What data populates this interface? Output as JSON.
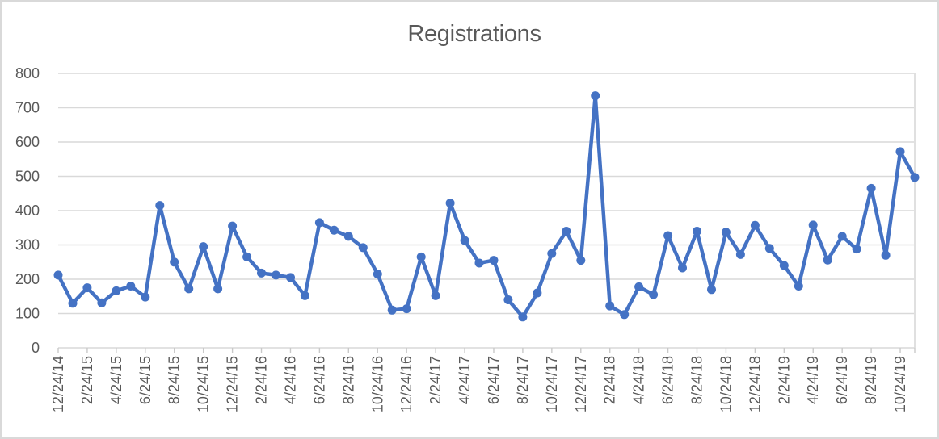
{
  "chart_data": {
    "type": "line",
    "title": "Registrations",
    "series_name": "Registrations",
    "series_color": "#4472C4",
    "title_color": "#595959",
    "axis_label_color": "#595959",
    "gridline_color": "#D9D9D9",
    "legend": "none",
    "grid": true,
    "marker": "circle",
    "x_label_rotation_deg": 90,
    "ylim": [
      0,
      800
    ],
    "y_ticks": [
      0,
      100,
      200,
      300,
      400,
      500,
      600,
      700,
      800
    ],
    "x": [
      "12/24/14",
      "1/24/15",
      "2/24/15",
      "3/24/15",
      "4/24/15",
      "5/24/15",
      "6/24/15",
      "7/24/15",
      "8/24/15",
      "9/24/15",
      "10/24/15",
      "11/24/15",
      "12/24/15",
      "1/24/16",
      "2/24/16",
      "3/24/16",
      "4/24/16",
      "5/24/16",
      "6/24/16",
      "7/24/16",
      "8/24/16",
      "9/24/16",
      "10/24/16",
      "11/24/16",
      "12/24/16",
      "1/24/17",
      "2/24/17",
      "3/24/17",
      "4/24/17",
      "5/24/17",
      "6/24/17",
      "7/24/17",
      "8/24/17",
      "9/24/17",
      "10/24/17",
      "11/24/17",
      "12/24/17",
      "1/24/18",
      "2/24/18",
      "3/24/18",
      "4/24/18",
      "5/24/18",
      "6/24/18",
      "7/24/18",
      "8/24/18",
      "9/24/18",
      "10/24/18",
      "11/24/18",
      "12/24/18",
      "1/24/19",
      "2/24/19",
      "3/24/19",
      "4/24/19",
      "5/24/19",
      "6/24/19",
      "7/24/19",
      "8/24/19",
      "9/24/19",
      "10/24/19",
      "11/24/19"
    ],
    "values": [
      212,
      130,
      175,
      131,
      166,
      180,
      148,
      415,
      250,
      172,
      295,
      172,
      355,
      265,
      218,
      212,
      205,
      152,
      365,
      343,
      325,
      292,
      215,
      110,
      114,
      265,
      152,
      422,
      313,
      247,
      255,
      140,
      90,
      160,
      275,
      340,
      255,
      735,
      122,
      97,
      178,
      155,
      327,
      233,
      340,
      170,
      337,
      272,
      357,
      290,
      240,
      180,
      358,
      256,
      325,
      288,
      465,
      270,
      572,
      497
    ],
    "x_tick_labels": [
      "12/24/14",
      "2/24/15",
      "4/24/15",
      "6/24/15",
      "8/24/15",
      "10/24/15",
      "12/24/15",
      "2/24/16",
      "4/24/16",
      "6/24/16",
      "8/24/16",
      "10/24/16",
      "12/24/16",
      "2/24/17",
      "4/24/17",
      "6/24/17",
      "8/24/17",
      "10/24/17",
      "12/24/17",
      "2/24/18",
      "4/24/18",
      "6/24/18",
      "8/24/18",
      "10/24/18",
      "12/24/18",
      "2/24/19",
      "4/24/19",
      "6/24/19",
      "8/24/19",
      "10/24/19"
    ]
  }
}
